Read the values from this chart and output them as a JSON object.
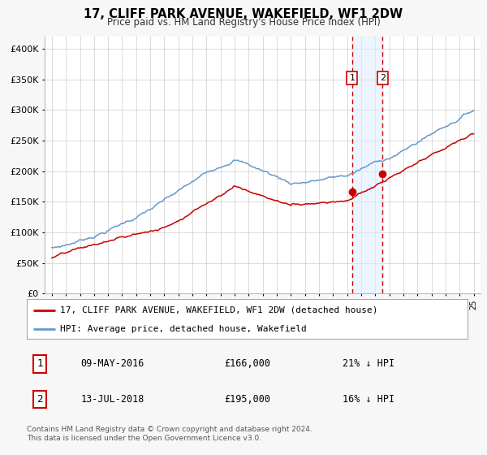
{
  "title": "17, CLIFF PARK AVENUE, WAKEFIELD, WF1 2DW",
  "subtitle": "Price paid vs. HM Land Registry's House Price Index (HPI)",
  "red_label": "17, CLIFF PARK AVENUE, WAKEFIELD, WF1 2DW (detached house)",
  "blue_label": "HPI: Average price, detached house, Wakefield",
  "sale1_label": "1",
  "sale1_date": "09-MAY-2016",
  "sale1_price": "£166,000",
  "sale1_hpi": "21% ↓ HPI",
  "sale1_year": 2016.36,
  "sale1_value": 166000,
  "sale2_label": "2",
  "sale2_date": "13-JUL-2018",
  "sale2_price": "£195,000",
  "sale2_hpi": "16% ↓ HPI",
  "sale2_year": 2018.53,
  "sale2_value": 195000,
  "footer1": "Contains HM Land Registry data © Crown copyright and database right 2024.",
  "footer2": "This data is licensed under the Open Government Licence v3.0.",
  "red_color": "#cc0000",
  "blue_color": "#6699cc",
  "background_color": "#f7f7f7",
  "plot_bg_color": "#ffffff",
  "grid_color": "#cccccc",
  "shade_color": "#ddeeff",
  "ylim_max": 420000,
  "xlim_min": 1994.5,
  "xlim_max": 2025.5
}
